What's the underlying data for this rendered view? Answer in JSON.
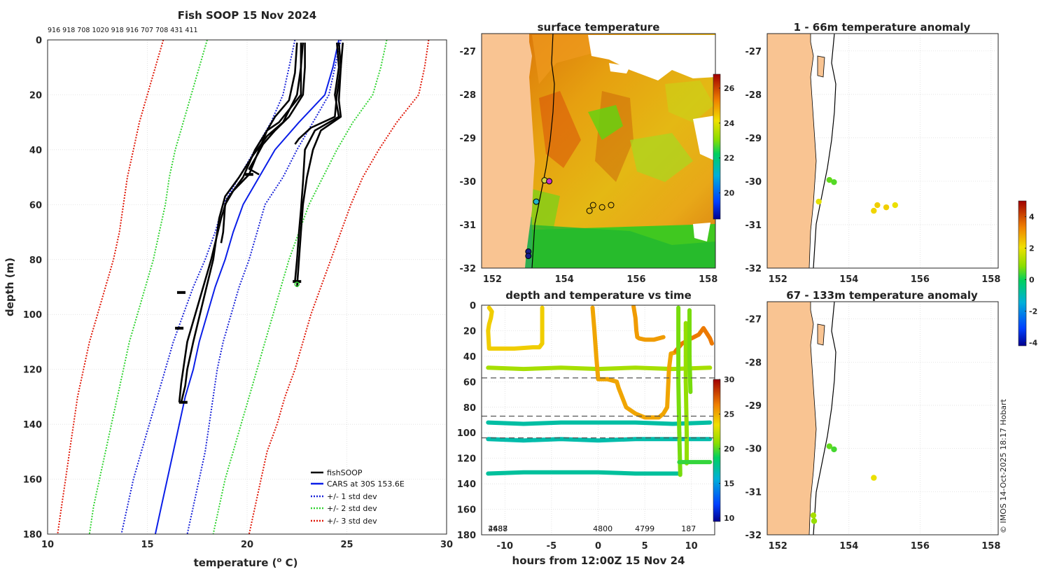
{
  "figure": {
    "credit": "© IMOS 14-Oct-2025 18:17 Hobart"
  },
  "colors": {
    "land": "#f9c492",
    "fishsoop": "#000000",
    "cars": "#0a1ee8",
    "std1": "#1a24d8",
    "std2": "#33d433",
    "std3": "#e01a0a",
    "grid": "#d8d8d8"
  },
  "panels": {
    "profile": {
      "title": "Fish SOOP 15 Nov 2024",
      "vessel_ids": "916 918 708 1020 918 916 707 708 431 411",
      "xlabel": "temperature (",
      "xlabel_sup": "o",
      "xlabel_end": " C)",
      "ylabel": "depth (m)"
    },
    "sst": {
      "title": "surface temperature"
    },
    "depth_time": {
      "title": "depth and temperature vs time",
      "xlabel": "hours from 12:00Z 15 Nov 24"
    },
    "anom_shallow": {
      "title": "1 - 66m temperature anomaly"
    },
    "anom_deep": {
      "title": "67 - 133m temperature anomaly"
    }
  },
  "chart_data": [
    {
      "id": "profile",
      "type": "line",
      "title": "Fish SOOP 15 Nov 2024",
      "xlabel": "temperature (o C)",
      "ylabel": "depth (m)",
      "xlim": [
        10,
        30
      ],
      "ylim": [
        0,
        180
      ],
      "xticks": [
        10,
        15,
        20,
        25,
        30
      ],
      "yticks": [
        0,
        20,
        40,
        60,
        80,
        100,
        120,
        140,
        160,
        180
      ],
      "legend": {
        "location": "bottom-right",
        "entries": [
          "fishSOOP",
          "CARS at 30S 153.6E",
          "+/- 1 std dev",
          "+/- 2 std dev",
          "+/- 3 std dev"
        ]
      },
      "series": [
        {
          "name": "CARS at 30S 153.6E",
          "style": "cars",
          "depth": [
            0,
            10,
            20,
            30,
            40,
            50,
            60,
            70,
            80,
            90,
            100,
            110,
            120,
            130,
            140,
            150,
            160,
            170,
            180
          ],
          "temp": [
            24.6,
            24.3,
            23.9,
            22.6,
            21.4,
            20.6,
            19.8,
            19.3,
            18.9,
            18.4,
            18.0,
            17.6,
            17.3,
            16.9,
            16.6,
            16.3,
            16.0,
            15.7,
            15.4
          ]
        },
        {
          "name": "+/- 1 std dev",
          "style": "std1",
          "depth": [
            0,
            10,
            20,
            30,
            40,
            50,
            60,
            70,
            80,
            90,
            100,
            110,
            120,
            130,
            140,
            150,
            160,
            170,
            180
          ],
          "lower": [
            22.4,
            22.1,
            21.8,
            21.2,
            20.4,
            19.6,
            18.8,
            18.4,
            17.9,
            17.3,
            16.8,
            16.3,
            15.9,
            15.5,
            15.1,
            14.7,
            14.3,
            14.0,
            13.7
          ],
          "upper": [
            24.7,
            24.4,
            24.1,
            23.3,
            22.5,
            21.8,
            20.9,
            20.5,
            20.1,
            19.6,
            19.2,
            18.8,
            18.5,
            18.3,
            18.1,
            17.9,
            17.6,
            17.3,
            17.0
          ]
        },
        {
          "name": "+/- 2 std dev",
          "style": "std2",
          "depth": [
            0,
            10,
            20,
            30,
            40,
            50,
            60,
            70,
            80,
            90,
            100,
            110,
            120,
            130,
            140,
            150,
            160,
            170,
            180
          ],
          "lower": [
            18.0,
            17.6,
            17.2,
            16.8,
            16.4,
            16.1,
            15.9,
            15.6,
            15.3,
            14.9,
            14.5,
            14.1,
            13.8,
            13.5,
            13.2,
            12.9,
            12.6,
            12.3,
            12.1
          ],
          "upper": [
            27.0,
            26.7,
            26.3,
            25.3,
            24.5,
            23.8,
            23.1,
            22.6,
            22.1,
            21.7,
            21.3,
            20.9,
            20.5,
            20.1,
            19.7,
            19.3,
            18.9,
            18.6,
            18.3
          ]
        },
        {
          "name": "+/- 3 std dev",
          "style": "std3",
          "depth": [
            0,
            10,
            20,
            30,
            40,
            50,
            60,
            70,
            80,
            90,
            100,
            110,
            120,
            130,
            140,
            150,
            160,
            170,
            180
          ],
          "lower": [
            15.8,
            15.4,
            15.0,
            14.6,
            14.3,
            14.0,
            13.8,
            13.6,
            13.3,
            12.9,
            12.5,
            12.1,
            11.8,
            11.5,
            11.3,
            11.1,
            10.9,
            10.7,
            10.5
          ],
          "upper": [
            29.1,
            28.9,
            28.6,
            27.5,
            26.6,
            25.8,
            25.2,
            24.7,
            24.2,
            23.7,
            23.2,
            22.8,
            22.4,
            21.9,
            21.5,
            21.0,
            20.7,
            20.4,
            20.1
          ]
        }
      ],
      "fishsoop_profiles": [
        {
          "depth": [
            1,
            10,
            20,
            28,
            33,
            38,
            42,
            47,
            49
          ],
          "temp": [
            22.9,
            22.9,
            22.8,
            22.1,
            21.4,
            20.8,
            20.5,
            20.1,
            20.6
          ]
        },
        {
          "depth": [
            1,
            10,
            20,
            30,
            33,
            40,
            49,
            55,
            60,
            70,
            74
          ],
          "temp": [
            22.8,
            22.7,
            22.7,
            21.6,
            21.0,
            20.6,
            20.1,
            19.3,
            18.9,
            18.8,
            18.7
          ]
        },
        {
          "depth": [
            1,
            10,
            20,
            30,
            35,
            42,
            50,
            57,
            65,
            80,
            95,
            110,
            120,
            126,
            132
          ],
          "temp": [
            22.7,
            22.7,
            22.5,
            21.8,
            21.0,
            20.3,
            19.6,
            18.9,
            18.6,
            18.3,
            17.8,
            17.3,
            17.0,
            16.9,
            16.7
          ]
        },
        {
          "depth": [
            1,
            12,
            22,
            28,
            33,
            40,
            50,
            58,
            65,
            80,
            95,
            110,
            125,
            132
          ],
          "temp": [
            22.5,
            22.4,
            22.1,
            21.4,
            21.0,
            20.4,
            19.8,
            19.0,
            18.7,
            18.2,
            17.6,
            17.0,
            16.7,
            16.6
          ]
        },
        {
          "depth": [
            1,
            10,
            20,
            28,
            32,
            36,
            38
          ],
          "temp": [
            24.8,
            24.7,
            24.5,
            24.4,
            23.2,
            22.6,
            22.4
          ]
        },
        {
          "depth": [
            1,
            10,
            22,
            28,
            33,
            40,
            50,
            60,
            70,
            80,
            90
          ],
          "temp": [
            24.6,
            24.7,
            24.6,
            24.7,
            23.7,
            23.3,
            23.0,
            22.8,
            22.7,
            22.6,
            22.5
          ]
        },
        {
          "depth": [
            1,
            10,
            20,
            28,
            33,
            40,
            52,
            62,
            70,
            80,
            88
          ],
          "temp": [
            24.5,
            24.6,
            24.4,
            24.6,
            23.4,
            22.9,
            22.8,
            22.7,
            22.6,
            22.5,
            22.4
          ]
        }
      ]
    },
    {
      "id": "sst_map",
      "type": "heatmap",
      "title": "surface temperature",
      "xlim": [
        151.7,
        158.2
      ],
      "ylim": [
        -32,
        -26.6
      ],
      "xticks": [
        152,
        154,
        156,
        158
      ],
      "yticks": [
        -27,
        -28,
        -29,
        -30,
        -31,
        -32
      ],
      "colorbar": {
        "range": [
          18.5,
          26.8
        ],
        "ticks": [
          20,
          22,
          24,
          26
        ]
      },
      "stations": [
        {
          "lon": 153.0,
          "lat": -31.62,
          "fill": "#1a1e8a"
        },
        {
          "lon": 153.0,
          "lat": -31.72,
          "fill": "#1a1e8a"
        },
        {
          "lon": 153.22,
          "lat": -30.47,
          "fill": "#22b4c8"
        },
        {
          "lon": 153.45,
          "lat": -29.98,
          "fill": "#d0d840"
        },
        {
          "lon": 153.58,
          "lat": -30.0,
          "fill": "#c830c8"
        },
        {
          "lon": 154.7,
          "lat": -30.68,
          "fill": "none"
        },
        {
          "lon": 154.8,
          "lat": -30.55,
          "fill": "none"
        },
        {
          "lon": 155.05,
          "lat": -30.6,
          "fill": "none"
        },
        {
          "lon": 155.3,
          "lat": -30.55,
          "fill": "none"
        }
      ]
    },
    {
      "id": "depth_time",
      "type": "scatter",
      "title": "depth and temperature vs time",
      "xlabel": "hours from 12:00Z 15 Nov 24",
      "xlim": [
        -12.5,
        12.5
      ],
      "ylim": [
        0,
        180
      ],
      "xticks": [
        -10,
        -5,
        0,
        5,
        10
      ],
      "yticks": [
        0,
        20,
        40,
        60,
        80,
        100,
        120,
        140,
        160,
        180
      ],
      "colorbar": {
        "range": [
          9.5,
          30
        ],
        "ticks": [
          10,
          15,
          20,
          25,
          30
        ]
      },
      "dashed_depths": [
        57,
        87,
        104
      ],
      "trip_labels": [
        {
          "hour": -11.8,
          "text": "2688"
        },
        {
          "hour": -11.8,
          "text": "4487"
        },
        {
          "hour": 0.5,
          "text": "4800"
        },
        {
          "hour": 5.0,
          "text": "4799"
        },
        {
          "hour": 9.7,
          "text": "187"
        }
      ],
      "tracks": [
        {
          "temp": 24.0,
          "hours": [
            -11.7,
            -11.4,
            -11.5,
            -11.7,
            -11.8,
            -11.7,
            -9,
            -7,
            -6.3,
            -6.0,
            -6.0
          ],
          "depths": [
            2,
            5,
            10,
            15,
            20,
            34,
            34,
            33,
            33,
            30,
            2
          ]
        },
        {
          "temp": 21.5,
          "hours": [
            -11.8,
            -8,
            -4,
            0,
            4,
            8,
            12
          ],
          "depths": [
            49,
            50,
            49,
            50,
            49,
            50,
            49
          ]
        },
        {
          "temp": 17.0,
          "hours": [
            -11.8,
            -8,
            -4,
            0,
            4,
            8,
            12
          ],
          "depths": [
            92,
            93,
            92,
            92,
            92,
            93,
            92
          ]
        },
        {
          "temp": 16.8,
          "hours": [
            -11.8,
            -8,
            -4,
            0,
            4,
            8,
            12
          ],
          "depths": [
            105,
            106,
            105,
            106,
            105,
            105,
            105
          ]
        },
        {
          "temp": 17.2,
          "hours": [
            -11.8,
            -8,
            -4,
            0,
            4,
            8.8
          ],
          "depths": [
            132,
            131,
            131,
            131,
            132,
            132
          ]
        },
        {
          "temp": 25.2,
          "hours": [
            -0.6,
            -0.4,
            -0.2,
            0.0,
            1.0,
            2.0,
            2.2,
            3.0,
            4.0,
            5.0,
            5.5,
            6.5,
            7.0,
            7.4,
            7.6,
            7.8,
            8.3
          ],
          "depths": [
            2,
            20,
            40,
            58,
            58,
            60,
            65,
            80,
            85,
            88,
            88,
            88,
            85,
            80,
            50,
            38,
            37
          ]
        },
        {
          "temp": 25.5,
          "hours": [
            3.8,
            4.0,
            4.1,
            4.2,
            4.4,
            5.0,
            6.0,
            7.0
          ],
          "depths": [
            1,
            10,
            20,
            25,
            26,
            27,
            27,
            25
          ]
        },
        {
          "temp": 26.5,
          "hours": [
            8.3,
            9.0,
            10.0,
            10.8,
            11.3,
            12.0,
            12.2
          ],
          "depths": [
            36,
            30,
            26,
            23,
            18,
            26,
            30
          ]
        },
        {
          "temp": 20.5,
          "hours": [
            8.6,
            8.6,
            8.7,
            8.8,
            8.8
          ],
          "depths": [
            2,
            60,
            100,
            130,
            133
          ]
        },
        {
          "temp": 21.0,
          "hours": [
            9.4,
            9.4,
            9.5,
            9.5
          ],
          "depths": [
            14,
            60,
            100,
            124
          ]
        },
        {
          "temp": 20.5,
          "hours": [
            9.8,
            9.8,
            9.9
          ],
          "depths": [
            4,
            40,
            68
          ]
        },
        {
          "temp": 19.5,
          "hours": [
            8.7,
            9.5,
            10.5,
            11.5,
            12.0
          ],
          "depths": [
            123,
            123,
            123,
            123,
            123
          ]
        }
      ]
    },
    {
      "id": "anom_shallow",
      "type": "scatter",
      "title": "1 - 66m temperature anomaly",
      "xlim": [
        151.7,
        158.2
      ],
      "ylim": [
        -32,
        -26.6
      ],
      "xticks": [
        152,
        154,
        156,
        158
      ],
      "yticks": [
        -27,
        -28,
        -29,
        -30,
        -31,
        -32
      ],
      "points": [
        {
          "lon": 153.45,
          "lat": -29.97,
          "anom": 0.6
        },
        {
          "lon": 153.58,
          "lat": -30.02,
          "anom": 0.5
        },
        {
          "lon": 153.15,
          "lat": -30.47,
          "anom": 1.9
        },
        {
          "lon": 154.7,
          "lat": -30.68,
          "anom": 2.2
        },
        {
          "lon": 154.8,
          "lat": -30.55,
          "anom": 2.3
        },
        {
          "lon": 155.05,
          "lat": -30.6,
          "anom": 2.3
        },
        {
          "lon": 155.3,
          "lat": -30.55,
          "anom": 2.0
        }
      ]
    },
    {
      "id": "anom_deep",
      "type": "scatter",
      "title": "67 - 133m temperature anomaly",
      "xlim": [
        151.7,
        158.2
      ],
      "ylim": [
        -32,
        -26.6
      ],
      "xticks": [
        152,
        154,
        156,
        158
      ],
      "yticks": [
        -27,
        -28,
        -29,
        -30,
        -31,
        -32
      ],
      "colorbar": {
        "range": [
          -4.2,
          5.0
        ],
        "ticks": [
          -4,
          -2,
          0,
          2,
          4
        ]
      },
      "points": [
        {
          "lon": 153.45,
          "lat": -29.95,
          "anom": 0.6
        },
        {
          "lon": 153.58,
          "lat": -30.02,
          "anom": 0.4
        },
        {
          "lon": 154.7,
          "lat": -30.68,
          "anom": 2.0
        },
        {
          "lon": 153.0,
          "lat": -31.55,
          "anom": 1.2
        },
        {
          "lon": 153.02,
          "lat": -31.68,
          "anom": 1.0
        }
      ]
    }
  ]
}
